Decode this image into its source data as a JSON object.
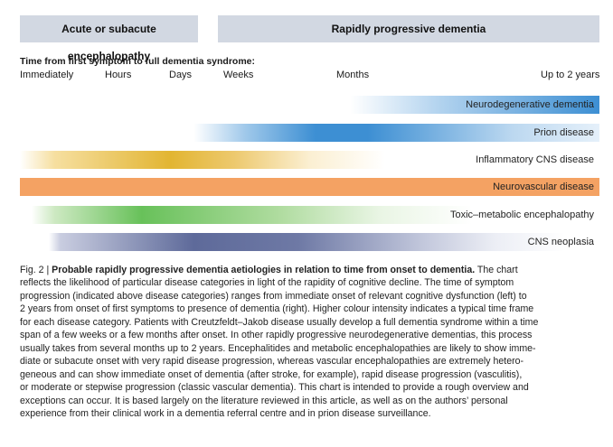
{
  "header": {
    "left_label": "Acute or subacute encephalopathy",
    "right_label": "Rapidly progressive dementia"
  },
  "timeline": {
    "title": "Time from first symptom to full dementia syndrome:",
    "ticks": [
      "Immediately",
      "Hours",
      "Days",
      "Weeks",
      "Months",
      "Up to 2 years"
    ]
  },
  "bars": [
    {
      "label": "Neurodegenerative dementia",
      "color": "#3d8fd3"
    },
    {
      "label": "Prion disease",
      "color": "#3d8fd3"
    },
    {
      "label": "Inflammatory CNS disease",
      "color": "#e2b532"
    },
    {
      "label": "Neurovascular disease",
      "color": "#f4a263"
    },
    {
      "label": "Toxic–metabolic encephalopathy",
      "color": "#68c15a"
    },
    {
      "label": "CNS neoplasia",
      "color": "#5e6a9a"
    }
  ],
  "caption": {
    "figure_label": "Fig. 2 |",
    "title": "Probable rapidly progressive dementia aetiologies in relation to time from onset to dementia.",
    "lines": [
      " The chart",
      "reflects the likelihood of particular disease categories in light of the rapidity of cognitive decline. The time of symptom",
      "progression (indicated above disease categories) ranges from immediate onset of relevant cognitive dysfunction (left) to",
      "2 years from onset of first symptoms to presence of dementia (right). Higher colour intensity indicates a typical time frame",
      "for each disease category. Patients with Creutzfeldt–Jakob disease usually develop a full dementia syndrome within a time",
      "span of a few weeks or a few months after onset. In other rapidly progressive neurodegenerative dementias, this process",
      "usually takes from several months up to 2 years. Encephalitides and metabolic encephalopathies are likely to show imme-",
      "diate or subacute onset with very rapid disease progression, whereas vascular encephalopathies are extremely hetero-",
      "geneous and can show immediate onset of dementia (after stroke, for example), rapid disease progression (vasculitis),",
      "or moderate or stepwise progression (classic vascular dementia). This chart is intended to provide a rough overview and",
      "exceptions can occur. It is based largely on the literature reviewed in this article, as well as on the authors’ personal",
      "experience from their clinical work in a dementia referral centre and in prion disease surveillance."
    ]
  }
}
